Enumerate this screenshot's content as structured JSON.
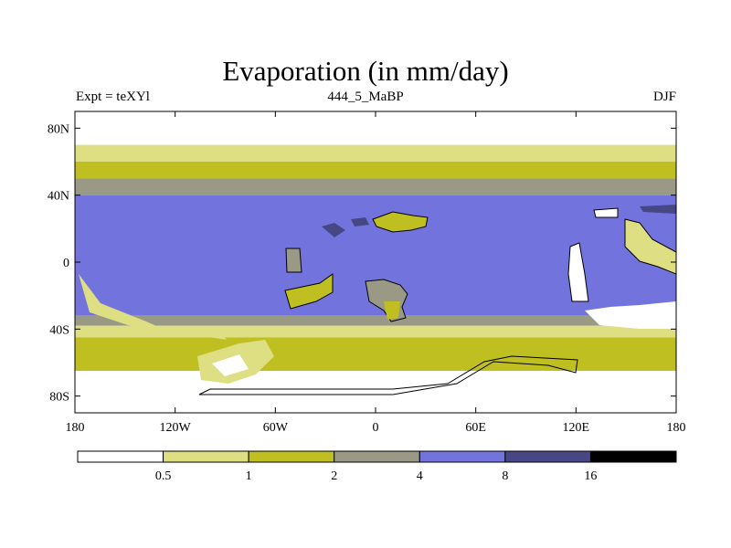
{
  "title": "Evaporation (in mm/day)",
  "left_string": "Expt = teXYl",
  "center_string": "444_5_MaBP",
  "right_string": "DJF",
  "map": {
    "variable": "Evaporation",
    "units": "mm/day",
    "season": "DJF",
    "projection": "cylindrical equidistant",
    "lon_range": [
      -180,
      180
    ],
    "lat_range": [
      -90,
      90
    ],
    "x_tick_labels": [
      "180",
      "120W",
      "60W",
      "0",
      "60E",
      "120E",
      "180"
    ],
    "y_tick_labels": [
      "80N",
      "40N",
      "0",
      "40S",
      "80S"
    ],
    "bands": [
      {
        "lat_from": 90,
        "lat_to": 70,
        "class": 0
      },
      {
        "lat_from": 70,
        "lat_to": 60,
        "class": 1
      },
      {
        "lat_from": 60,
        "lat_to": 50,
        "class": 2
      },
      {
        "lat_from": 50,
        "lat_to": 40,
        "class": 3
      },
      {
        "lat_from": 40,
        "lat_to": -32,
        "class": 4
      },
      {
        "lat_from": -32,
        "lat_to": -38,
        "class": 3
      },
      {
        "lat_from": -38,
        "lat_to": -45,
        "class": 1
      },
      {
        "lat_from": -45,
        "lat_to": -65,
        "class": 2
      },
      {
        "lat_from": -65,
        "lat_to": -90,
        "class": 0
      }
    ]
  },
  "colorbar": {
    "levels": [
      "0.5",
      "1",
      "2",
      "4",
      "8",
      "16"
    ],
    "colors": [
      "#ffffff",
      "#dede82",
      "#bfbf21",
      "#999986",
      "#7373de",
      "#474785",
      "#000000"
    ]
  }
}
